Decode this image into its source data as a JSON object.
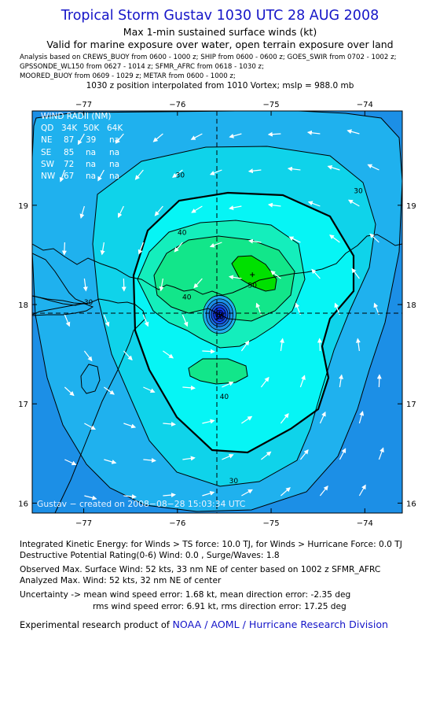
{
  "header": {
    "title": "Tropical Storm Gustav 1030 UTC 28 AUG 2008",
    "subtitle1": "Max 1-min sustained surface winds (kt)",
    "subtitle2": "Valid for marine exposure over water, open terrain exposure over land",
    "source_line1": "Analysis based on  CREWS_BUOY from 0600 - 1000 z;  SHIP from 0600 - 0600 z;  GOES_SWIR from 0702 - 1002 z;",
    "source_line2": "GPSSONDE_WL150 from 0627 - 1014 z;  SFMR_AFRC from 0618 - 1030 z;",
    "source_line3": "MOORED_BUOY from 0609 - 1029 z;  METAR from 0600 - 1000 z;",
    "position_line": "1030 z position interpolated from 1010 Vortex; mslp = 988.0 mb"
  },
  "map": {
    "lon_ticks": [
      "−77",
      "−76",
      "−75",
      "−74"
    ],
    "lat_ticks": [
      "19",
      "18",
      "17",
      "16"
    ],
    "lon_range": [
      -77.55,
      -73.6
    ],
    "lat_range": [
      15.9,
      19.95
    ],
    "center": {
      "lon": -75.55,
      "lat": 17.9
    },
    "max_wind_marker": {
      "lon": -75.2,
      "lat": 18.3
    },
    "contour_labels": [
      {
        "text": "30",
        "lon": -75.97,
        "lat": 19.28
      },
      {
        "text": "30",
        "lon": -74.07,
        "lat": 19.12
      },
      {
        "text": "30",
        "lon": -76.95,
        "lat": 18.0
      },
      {
        "text": "30",
        "lon": -75.4,
        "lat": 16.2
      },
      {
        "text": "40",
        "lon": -75.95,
        "lat": 18.7
      },
      {
        "text": "40",
        "lon": -75.9,
        "lat": 18.05
      },
      {
        "text": "40",
        "lon": -75.5,
        "lat": 17.05
      },
      {
        "text": "50",
        "lon": -75.2,
        "lat": 18.17
      },
      {
        "text": "50",
        "lon": -75.55,
        "lat": 17.85
      }
    ],
    "colors": {
      "c20": "#1c8fe6",
      "c25": "#1fb1ee",
      "c30": "#0fd3ea",
      "c35": "#06f5f5",
      "c40": "#14eebc",
      "c45": "#12e68a",
      "c50": "#00e000",
      "center_blue": "#0033ff",
      "coast": "#000000",
      "arrow": "#ffffff"
    },
    "credit": "Gustav − created on 2008−08−28 15:03:34 UTC"
  },
  "wind_radii": {
    "title": "WIND RADII (NM)",
    "header": [
      "QD",
      "34K",
      "50K",
      "64K"
    ],
    "rows": [
      [
        "NE",
        "87",
        "39",
        "na"
      ],
      [
        "SE",
        "85",
        "na",
        "na"
      ],
      [
        "SW",
        "72",
        "na",
        "na"
      ],
      [
        "NW",
        "67",
        "na",
        "na"
      ]
    ]
  },
  "footer": {
    "ike": "Integrated Kinetic Energy:  for Winds > TS force: 10.0 TJ,  for Winds > Hurricane Force: 0.0 TJ",
    "dpr": "Destructive Potential Rating(0-6)   Wind: 0.0 , Surge/Waves: 1.8",
    "observed": "Observed Max. Surface Wind: 52 kts, 33 nm NE of center based on 1002 z SFMR_AFRC",
    "analyzed": "Analyzed Max. Wind: 52 kts, 32 nm NE of center",
    "uncert1": "Uncertainty -> mean wind speed error: 1.68 kt,   mean direction error:  -2.35 deg",
    "uncert2": "rms wind speed error: 6.91 kt,   rms direction error: 17.25 deg",
    "exp_prefix": "Experimental research product of",
    "exp_org": "NOAA / AOML / Hurricane Research Division"
  }
}
